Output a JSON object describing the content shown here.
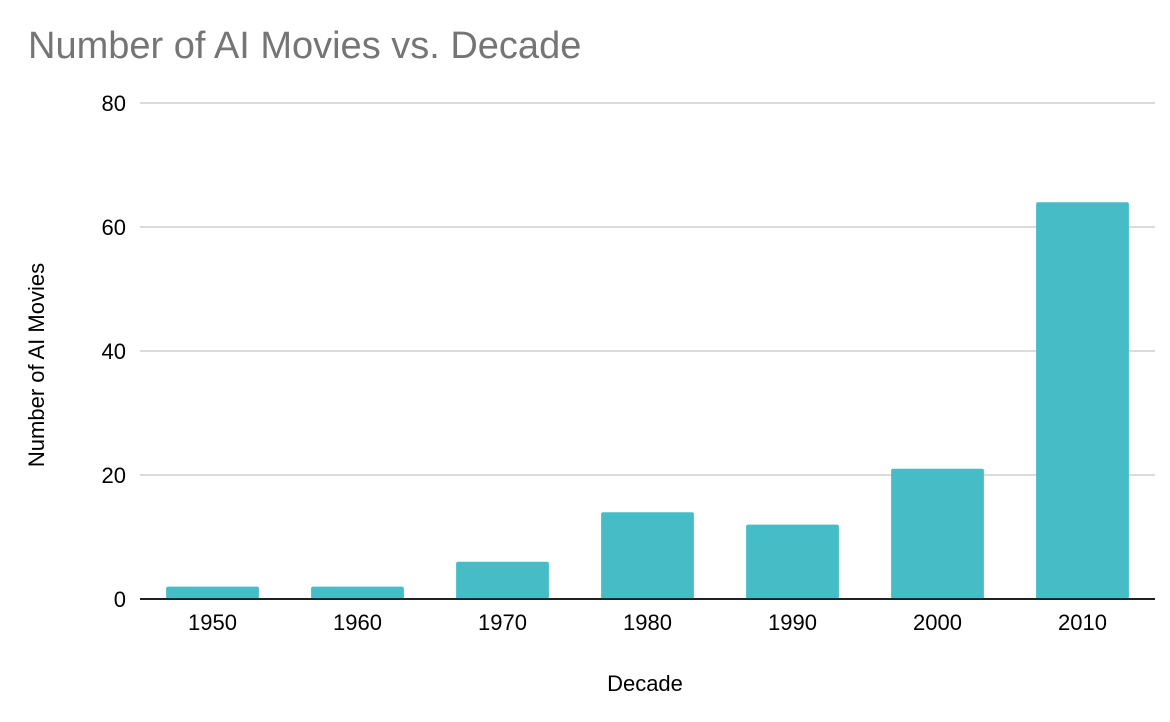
{
  "chart_data": {
    "type": "bar",
    "title": "Number of AI Movies vs. Decade",
    "xlabel": "Decade",
    "ylabel": "Number of AI Movies",
    "categories": [
      "1950",
      "1960",
      "1970",
      "1980",
      "1990",
      "2000",
      "2010"
    ],
    "values": [
      2,
      2,
      6,
      14,
      12,
      21,
      64
    ],
    "ylim": [
      0,
      80
    ],
    "yticks": [
      0,
      20,
      40,
      60,
      80
    ],
    "grid": true,
    "legend": "none",
    "bar_color": "#46bdc6"
  }
}
